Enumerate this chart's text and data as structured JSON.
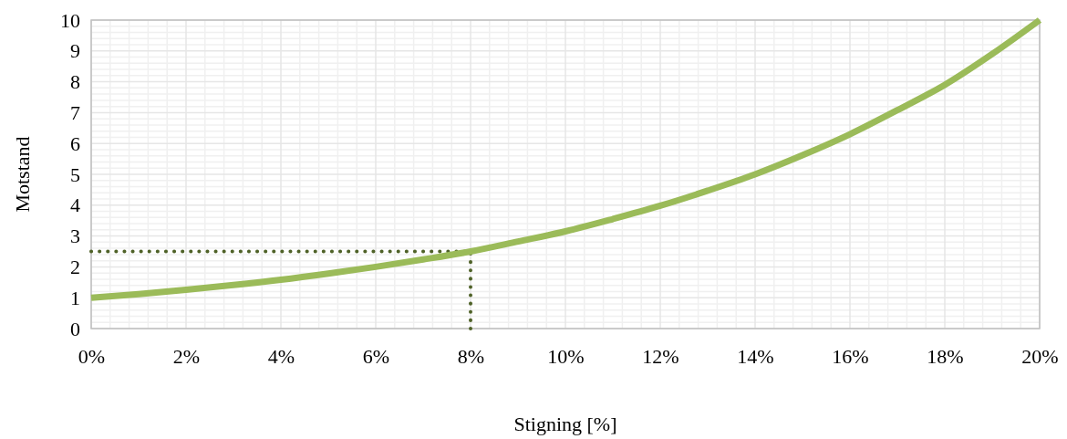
{
  "chart_data": {
    "type": "line",
    "xlabel": "Stigning [%]",
    "ylabel": "Motstand",
    "x": [
      0,
      1,
      2,
      3,
      4,
      5,
      6,
      7,
      8,
      9,
      10,
      11,
      12,
      13,
      14,
      15,
      16,
      17,
      18,
      19,
      20
    ],
    "series": [
      {
        "color": "#9bbb59",
        "values": [
          1,
          1.12,
          1.26,
          1.41,
          1.58,
          1.78,
          2.0,
          2.24,
          2.5,
          2.82,
          3.15,
          3.55,
          3.98,
          4.47,
          5.0,
          5.62,
          6.3,
          7.08,
          7.9,
          8.9,
          10
        ]
      }
    ],
    "xlim": [
      0,
      20
    ],
    "xticks": [
      {
        "value": 0,
        "label": "0%"
      },
      {
        "value": 2,
        "label": "2%"
      },
      {
        "value": 4,
        "label": "4%"
      },
      {
        "value": 6,
        "label": "6%"
      },
      {
        "value": 8,
        "label": "8%"
      },
      {
        "value": 10,
        "label": "10%"
      },
      {
        "value": 12,
        "label": "12%"
      },
      {
        "value": 14,
        "label": "14%"
      },
      {
        "value": 16,
        "label": "16%"
      },
      {
        "value": 18,
        "label": "18%"
      },
      {
        "value": 20,
        "label": "20%"
      }
    ],
    "ylim": [
      0,
      10
    ],
    "yticks": [
      0,
      1,
      2,
      3,
      4,
      5,
      6,
      7,
      8,
      9,
      10
    ],
    "grid": true,
    "marker": "none",
    "line_style": "solid",
    "ref_lines": [
      {
        "axis": "y",
        "value": 2.5,
        "color": "#4f6228",
        "line_style": "dotted"
      },
      {
        "axis": "x",
        "value": 8,
        "color": "#4f6228",
        "line_style": "dotted"
      }
    ]
  }
}
